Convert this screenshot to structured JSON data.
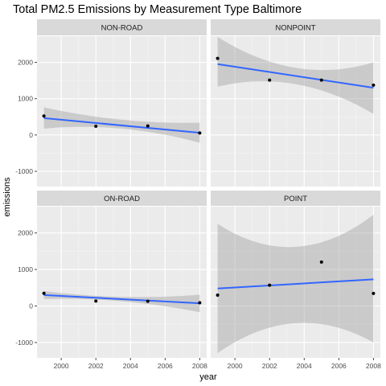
{
  "chart_data": {
    "type": "scatter",
    "title": "Total PM2.5 Emissions by Measurement Type Baltimore",
    "xlabel": "year",
    "ylabel": "emissions",
    "xlim": [
      1998.6,
      2008.4
    ],
    "ylim": [
      -1420,
      2720
    ],
    "x_ticks": [
      "2000",
      "2002",
      "2004",
      "2006",
      "2008"
    ],
    "y_ticks": [
      "-1000",
      "0",
      "1000",
      "2000"
    ],
    "layout": "2x2 facets",
    "grid": true,
    "panel_background": "#ebebeb",
    "strip_background": "#d9d9d9",
    "smooth_color": "#3366ff",
    "ribbon_color": "#999999",
    "point_color": "#000000",
    "facets": [
      {
        "label": "NON-ROAD",
        "points": [
          [
            1999,
            522.9
          ],
          [
            2002,
            240.8
          ],
          [
            2005,
            248.9
          ],
          [
            2008,
            55.8
          ]
        ],
        "fit": {
          "start": 465,
          "end": 60
        },
        "band": {
          "start": [
            175,
            760
          ],
          "mid": [
            175,
            420
          ],
          "end": [
            -215,
            340
          ]
        }
      },
      {
        "label": "NONPOINT",
        "points": [
          [
            1999,
            2107.6
          ],
          [
            2002,
            1509.5
          ],
          [
            2005,
            1509.5
          ],
          [
            2008,
            1373.2
          ]
        ],
        "fit": {
          "start": 1950,
          "end": 1300
        },
        "band": {
          "start": [
            1330,
            2700
          ],
          "mid": [
            1400,
            1850
          ],
          "end": [
            580,
            2000
          ]
        }
      },
      {
        "label": "ON-ROAD",
        "points": [
          [
            1999,
            346.8
          ],
          [
            2002,
            134.3
          ],
          [
            2005,
            130.4
          ],
          [
            2008,
            88.3
          ]
        ],
        "fit": {
          "start": 300,
          "end": 75
        },
        "band": {
          "start": [
            190,
            410
          ],
          "mid": [
            130,
            250
          ],
          "end": [
            -170,
            310
          ]
        }
      },
      {
        "label": "POINT",
        "points": [
          [
            1999,
            296.8
          ],
          [
            2002,
            569.3
          ],
          [
            2005,
            1202.5
          ],
          [
            2008,
            344.98
          ]
        ],
        "fit": {
          "start": 480,
          "end": 730
        },
        "band": {
          "start": [
            -1290,
            2250
          ],
          "mid": [
            -470,
            1620
          ],
          "end": [
            -1000,
            2500
          ]
        }
      }
    ]
  }
}
